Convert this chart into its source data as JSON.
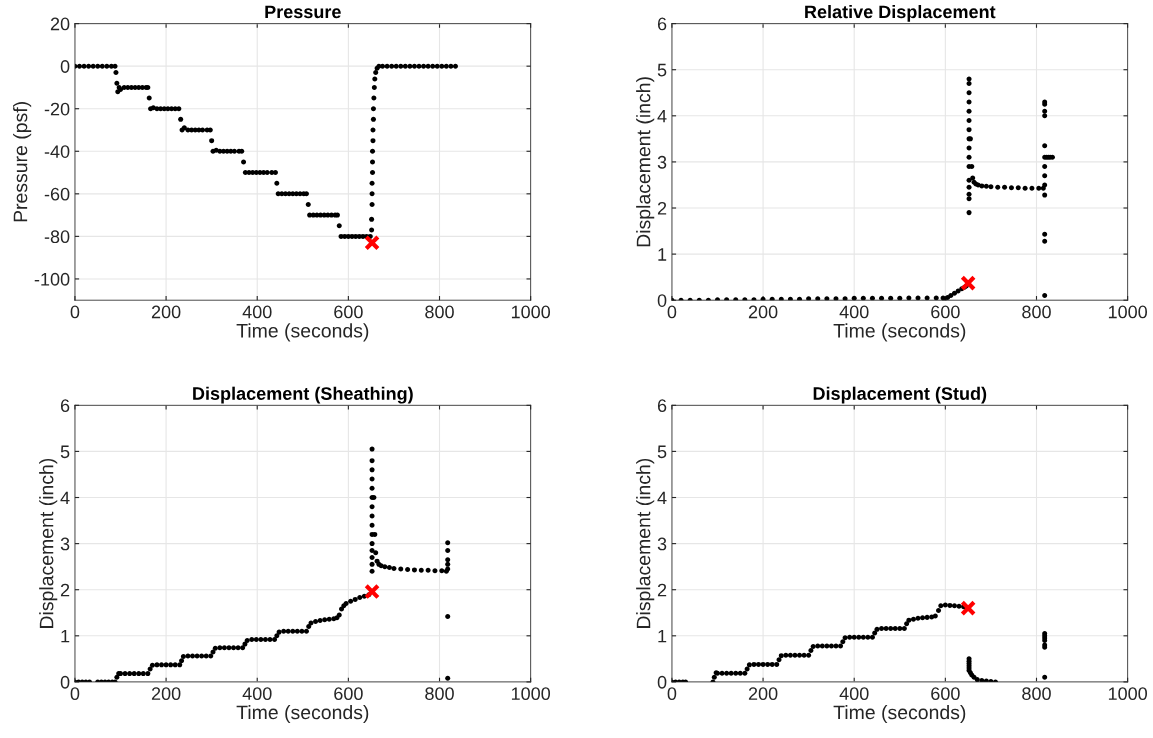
{
  "chart_data": [
    {
      "type": "scatter",
      "title": "Pressure",
      "xlabel": "Time (seconds)",
      "ylabel": "Pressure (psf)",
      "xlim": [
        0,
        1000
      ],
      "ylim": [
        -110,
        20
      ],
      "xticks": [
        0,
        200,
        400,
        600,
        800,
        1000
      ],
      "yticks": [
        {
          "value": -100,
          "label": "-100"
        },
        {
          "value": -80,
          "label": "-80"
        },
        {
          "value": -60,
          "label": "-60"
        },
        {
          "value": -40,
          "label": "-40"
        },
        {
          "value": -20,
          "label": "-20"
        },
        0,
        20
      ],
      "grid": true,
      "series": [
        {
          "color": "#000000",
          "marker": "circle",
          "x": [
            0,
            10,
            20,
            30,
            40,
            50,
            60,
            70,
            80,
            88,
            90,
            92,
            94,
            97,
            100,
            108,
            116,
            124,
            132,
            140,
            148,
            156,
            160,
            163,
            166,
            172,
            180,
            188,
            196,
            204,
            212,
            220,
            228,
            232,
            235,
            240,
            248,
            256,
            264,
            272,
            280,
            290,
            297,
            300,
            303,
            310,
            318,
            326,
            334,
            342,
            350,
            360,
            366,
            370,
            374,
            382,
            390,
            398,
            406,
            414,
            422,
            432,
            440,
            443,
            446,
            454,
            462,
            470,
            478,
            486,
            494,
            502,
            508,
            512,
            515,
            523,
            531,
            539,
            547,
            555,
            563,
            571,
            576,
            580,
            584,
            592,
            600,
            608,
            616,
            624,
            632,
            640,
            648,
            651,
            651,
            652,
            652,
            652,
            653,
            653,
            653,
            654,
            654,
            655,
            655,
            656,
            657,
            658,
            660,
            663,
            667,
            675,
            685,
            695,
            705,
            715,
            725,
            735,
            745,
            755,
            765,
            775,
            785,
            795,
            805,
            815,
            825,
            835
          ],
          "values": [
            0,
            0,
            0,
            0,
            0,
            0,
            0,
            0,
            0,
            0,
            -3,
            -8,
            -12,
            -10,
            -11,
            -10,
            -10,
            -10,
            -10,
            -10,
            -10,
            -10,
            -10,
            -15,
            -20,
            -19.5,
            -20,
            -20,
            -20,
            -20,
            -20,
            -20,
            -20,
            -25,
            -30,
            -29,
            -30,
            -30,
            -30,
            -30,
            -30,
            -30,
            -30,
            -35,
            -40,
            -39.5,
            -40,
            -40,
            -40,
            -40,
            -40,
            -40,
            -40,
            -45,
            -50,
            -50,
            -50,
            -50,
            -50,
            -50,
            -50,
            -50,
            -50,
            -55,
            -60,
            -60,
            -60,
            -60,
            -60,
            -60,
            -60,
            -60,
            -60,
            -65,
            -70,
            -70,
            -70,
            -70,
            -70,
            -70,
            -70,
            -70,
            -70,
            -75,
            -80,
            -80,
            -80,
            -80,
            -80,
            -80,
            -80,
            -80,
            -80,
            -77,
            -72,
            -65,
            -60,
            -55,
            -50,
            -45,
            -40,
            -35,
            -30,
            -25,
            -20,
            -15,
            -10,
            -6,
            -3,
            -1,
            0,
            0,
            0,
            0,
            0,
            0,
            0,
            0,
            0,
            0,
            0,
            0,
            0,
            0,
            0,
            0,
            0,
            0
          ]
        },
        {
          "color": "#ff0000",
          "marker": "cross",
          "x": [
            652
          ],
          "values": [
            -83
          ]
        }
      ]
    },
    {
      "type": "scatter",
      "title": "Relative Displacement",
      "xlabel": "Time (seconds)",
      "ylabel": "Displacement (inch)",
      "xlim": [
        0,
        1000
      ],
      "ylim": [
        0,
        6
      ],
      "xticks": [
        0,
        200,
        400,
        600,
        800,
        1000
      ],
      "yticks": [
        0,
        1,
        2,
        3,
        4,
        5,
        6
      ],
      "grid": true,
      "series": [
        {
          "color": "#000000",
          "marker": "circle",
          "x": [
            0,
            20,
            40,
            60,
            80,
            100,
            120,
            140,
            160,
            180,
            200,
            220,
            240,
            260,
            280,
            300,
            320,
            340,
            360,
            380,
            400,
            420,
            440,
            460,
            480,
            500,
            520,
            540,
            560,
            580,
            595,
            598,
            605,
            612,
            620,
            628,
            636,
            642,
            646,
            652,
            652,
            652,
            652,
            652,
            652,
            652,
            652,
            652,
            652,
            652,
            652,
            652,
            652,
            652,
            652,
            655,
            658,
            660,
            663,
            667,
            672,
            680,
            690,
            700,
            715,
            730,
            745,
            760,
            775,
            790,
            805,
            815,
            818,
            818,
            818,
            818,
            818,
            818,
            818,
            818,
            818,
            818,
            818,
            818,
            818,
            822,
            826,
            830,
            835
          ],
          "values": [
            0,
            0,
            0,
            0,
            0,
            0.01,
            0.01,
            0.01,
            0.01,
            0.01,
            0.02,
            0.02,
            0.02,
            0.02,
            0.02,
            0.03,
            0.03,
            0.03,
            0.03,
            0.03,
            0.04,
            0.04,
            0.04,
            0.04,
            0.04,
            0.04,
            0.05,
            0.05,
            0.05,
            0.05,
            0.05,
            0,
            0.06,
            0.1,
            0.15,
            0.2,
            0.25,
            0.28,
            0.31,
            1.9,
            2.2,
            2.3,
            2.45,
            2.6,
            2.9,
            3.1,
            3.3,
            3.5,
            3.7,
            3.9,
            4.1,
            4.3,
            4.5,
            4.7,
            4.8,
            3.5,
            2.9,
            2.65,
            2.56,
            2.52,
            2.5,
            2.48,
            2.47,
            2.46,
            2.45,
            2.45,
            2.44,
            2.44,
            2.43,
            2.43,
            2.43,
            2.43,
            0.1,
            1.28,
            1.43,
            2.28,
            2.5,
            2.7,
            2.9,
            3.1,
            3.35,
            4.0,
            4.1,
            4.25,
            4.3,
            3.1,
            3.1,
            3.1,
            3.1
          ]
        },
        {
          "color": "#ff0000",
          "marker": "cross",
          "x": [
            650
          ],
          "values": [
            0.37
          ]
        }
      ]
    },
    {
      "type": "scatter",
      "title": "Displacement (Sheathing)",
      "xlabel": "Time (seconds)",
      "ylabel": "Displacement (inch)",
      "xlim": [
        0,
        1000
      ],
      "ylim": [
        0,
        6
      ],
      "xticks": [
        0,
        200,
        400,
        600,
        800,
        1000
      ],
      "yticks": [
        0,
        1,
        2,
        3,
        4,
        5,
        6
      ],
      "grid": true,
      "series": [
        {
          "color": "#000000",
          "marker": "circle",
          "x": [
            0,
            8,
            16,
            24,
            32,
            50,
            58,
            66,
            74,
            82,
            88,
            92,
            96,
            100,
            110,
            120,
            130,
            140,
            150,
            160,
            165,
            170,
            180,
            190,
            200,
            210,
            220,
            230,
            234,
            238,
            248,
            258,
            268,
            278,
            288,
            298,
            303,
            308,
            318,
            328,
            338,
            348,
            358,
            368,
            373,
            378,
            388,
            398,
            408,
            418,
            428,
            438,
            443,
            448,
            458,
            468,
            478,
            488,
            498,
            508,
            513,
            518,
            528,
            538,
            548,
            558,
            568,
            575,
            580,
            585,
            590,
            595,
            605,
            615,
            625,
            635,
            645,
            652,
            652,
            652,
            652,
            652,
            652,
            652,
            652,
            652,
            652,
            652,
            652,
            652,
            652,
            652,
            656,
            658,
            660,
            663,
            667,
            672,
            680,
            690,
            700,
            715,
            730,
            745,
            760,
            775,
            790,
            805,
            815,
            818,
            818,
            818,
            818,
            818,
            818,
            818
          ],
          "values": [
            0,
            0,
            0,
            0,
            0,
            0,
            0,
            0,
            0,
            0,
            0,
            0.1,
            0.18,
            0.18,
            0.18,
            0.18,
            0.18,
            0.18,
            0.18,
            0.18,
            0.28,
            0.36,
            0.37,
            0.37,
            0.37,
            0.37,
            0.37,
            0.37,
            0.46,
            0.55,
            0.56,
            0.56,
            0.56,
            0.56,
            0.56,
            0.56,
            0.65,
            0.73,
            0.74,
            0.74,
            0.74,
            0.74,
            0.74,
            0.74,
            0.82,
            0.9,
            0.92,
            0.92,
            0.92,
            0.92,
            0.92,
            0.92,
            1.0,
            1.08,
            1.1,
            1.1,
            1.1,
            1.1,
            1.1,
            1.1,
            1.2,
            1.28,
            1.31,
            1.33,
            1.35,
            1.36,
            1.37,
            1.39,
            1.45,
            1.58,
            1.65,
            1.7,
            1.75,
            1.79,
            1.83,
            1.86,
            1.89,
            2.4,
            2.55,
            2.7,
            2.85,
            3.0,
            3.2,
            3.4,
            3.6,
            3.8,
            4.0,
            4.2,
            4.4,
            4.6,
            4.8,
            5.05,
            4.0,
            3.2,
            2.8,
            2.62,
            2.55,
            2.52,
            2.5,
            2.48,
            2.46,
            2.45,
            2.44,
            2.43,
            2.42,
            2.42,
            2.41,
            2.41,
            2.4,
            0.08,
            1.42,
            2.45,
            2.55,
            2.65,
            2.85,
            3.02
          ]
        },
        {
          "color": "#ff0000",
          "marker": "cross",
          "x": [
            652
          ],
          "values": [
            1.96
          ]
        }
      ]
    },
    {
      "type": "scatter",
      "title": "Displacement (Stud)",
      "xlabel": "Time (seconds)",
      "ylabel": "Displacement (inch)",
      "xlim": [
        0,
        1000
      ],
      "ylim": [
        0,
        6
      ],
      "xticks": [
        0,
        200,
        400,
        600,
        800,
        1000
      ],
      "yticks": [
        0,
        1,
        2,
        3,
        4,
        5,
        6
      ],
      "grid": true,
      "series": [
        {
          "color": "#000000",
          "marker": "circle",
          "x": [
            0,
            8,
            16,
            24,
            30,
            90,
            93,
            97,
            100,
            110,
            120,
            130,
            140,
            150,
            160,
            165,
            170,
            180,
            190,
            200,
            210,
            220,
            230,
            235,
            240,
            250,
            260,
            270,
            280,
            290,
            300,
            305,
            310,
            320,
            330,
            340,
            350,
            360,
            370,
            375,
            380,
            390,
            400,
            410,
            420,
            430,
            440,
            445,
            450,
            460,
            470,
            480,
            490,
            500,
            510,
            515,
            520,
            530,
            540,
            550,
            560,
            570,
            578,
            585,
            590,
            600,
            610,
            620,
            630,
            640,
            645,
            652,
            652,
            652,
            652,
            652,
            652,
            655,
            658,
            663,
            670,
            680,
            690,
            700,
            710,
            818,
            818,
            818,
            818,
            818,
            818,
            818
          ],
          "values": [
            0,
            0,
            0,
            0,
            0,
            0,
            0.1,
            0.2,
            0.19,
            0.19,
            0.19,
            0.19,
            0.19,
            0.19,
            0.19,
            0.28,
            0.37,
            0.38,
            0.38,
            0.38,
            0.38,
            0.38,
            0.38,
            0.48,
            0.57,
            0.58,
            0.58,
            0.58,
            0.58,
            0.58,
            0.58,
            0.68,
            0.77,
            0.78,
            0.78,
            0.78,
            0.78,
            0.78,
            0.78,
            0.87,
            0.96,
            0.97,
            0.97,
            0.97,
            0.97,
            0.97,
            0.97,
            1.06,
            1.14,
            1.16,
            1.16,
            1.16,
            1.16,
            1.16,
            1.16,
            1.26,
            1.34,
            1.36,
            1.38,
            1.39,
            1.4,
            1.41,
            1.43,
            1.55,
            1.65,
            1.67,
            1.66,
            1.65,
            1.64,
            1.63,
            1.62,
            0.5,
            0.45,
            0.4,
            0.35,
            0.3,
            0.25,
            0.2,
            0.15,
            0.1,
            0.05,
            0.03,
            0.02,
            0.01,
            0,
            0.1,
            0.75,
            0.8,
            0.9,
            0.95,
            1.0,
            1.05
          ]
        },
        {
          "color": "#ff0000",
          "marker": "cross",
          "x": [
            650
          ],
          "values": [
            1.6
          ]
        }
      ]
    }
  ]
}
